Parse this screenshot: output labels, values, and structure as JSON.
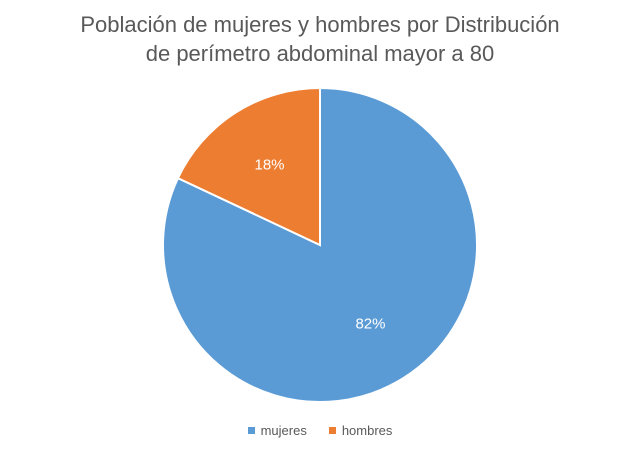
{
  "chart_data": {
    "type": "pie",
    "title_lines": [
      "Población de mujeres y hombres por Distribución",
      "de perímetro abdominal mayor a 80"
    ],
    "categories": [
      "mujeres",
      "hombres"
    ],
    "values": [
      82,
      18
    ],
    "labels": [
      "82%",
      "18%"
    ],
    "colors": [
      "#5B9BD5",
      "#ED7D31"
    ],
    "legend_position": "bottom",
    "start_angle_deg": 0,
    "direction": "clockwise"
  }
}
